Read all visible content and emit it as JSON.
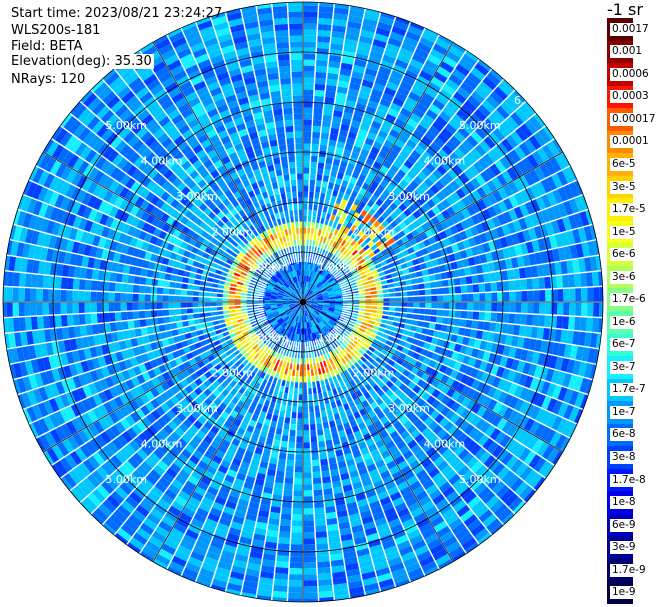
{
  "header": {
    "start_time": "Start time: 2023/08/21 23:24:27",
    "instrument": "WLS200s-181",
    "field": "Field: BETA",
    "elevation": "Elevation(deg): 35.30",
    "nrays": "NRays: 120"
  },
  "colorbar": {
    "unit": "-1 sr",
    "labels": [
      "0.0017",
      "0.001",
      "0.0006",
      "0.0003",
      "0.00017",
      "0.0001",
      "6e-5",
      "3e-5",
      "1.7e-5",
      "1e-5",
      "6e-6",
      "3e-6",
      "1.7e-6",
      "1e-6",
      "6e-7",
      "3e-7",
      "1.7e-7",
      "1e-7",
      "6e-8",
      "3e-8",
      "1.7e-8",
      "1e-8",
      "6e-9",
      "3e-9",
      "1.7e-9",
      "1e-9"
    ],
    "colors": [
      "#5a0000",
      "#8c0000",
      "#c40000",
      "#ff1400",
      "#ff5a00",
      "#ff8a00",
      "#ffb000",
      "#ffd200",
      "#fff000",
      "#f4ff1a",
      "#d6ff3c",
      "#b0ff5e",
      "#86ff84",
      "#5cffaa",
      "#34ffd4",
      "#14f0ff",
      "#00c8ff",
      "#0098ff",
      "#006cff",
      "#0040ff",
      "#0018ff",
      "#0000e8",
      "#0000c0",
      "#000098",
      "#000070",
      "#000048"
    ]
  },
  "chart_data": {
    "type": "polar-ppi",
    "field": "BETA",
    "elevation_deg": 35.3,
    "n_rays": 120,
    "range_rings_km": [
      1,
      2,
      3,
      4,
      5,
      6
    ],
    "ring_labels": [
      "1.00km",
      "2.00km",
      "3.00km",
      "4.00km",
      "5.00km"
    ],
    "ring_label_partial": "6.",
    "radial_line_spacing_deg": 30,
    "max_range_km": 6,
    "background_level_index": 17,
    "aerosol_ring": {
      "range_km": 1.38,
      "peak_level_index": 3,
      "notes": "red/orange enhanced backscatter ring around ~1.4 km"
    }
  }
}
